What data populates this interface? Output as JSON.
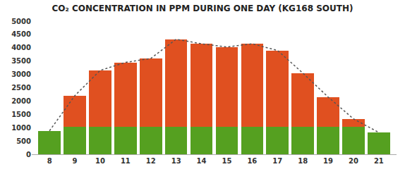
{
  "chart_data": {
    "type": "bar",
    "stacked": true,
    "title": "CO₂ CONCENTRATION IN PPM DURING ONE DAY (KG168 SOUTH)",
    "x": [
      8,
      9,
      10,
      11,
      12,
      13,
      14,
      15,
      16,
      17,
      18,
      19,
      20,
      21
    ],
    "series": [
      {
        "color": "#55A020",
        "values": [
          880,
          1020,
          1020,
          1020,
          1020,
          1020,
          1020,
          1020,
          1020,
          1020,
          1020,
          1020,
          1020,
          820
        ]
      },
      {
        "color": "#E05020",
        "values": [
          0,
          1180,
          2130,
          2430,
          2580,
          3300,
          3130,
          3010,
          3130,
          2880,
          2030,
          1130,
          310,
          0
        ]
      },
      {
        "type": "line",
        "line_style": "dotted",
        "color": "#555555",
        "values": [
          880,
          2200,
          3150,
          3450,
          3600,
          4320,
          4150,
          4030,
          4150,
          3900,
          3050,
          2150,
          1330,
          820
        ]
      }
    ],
    "xlim": [
      7.3,
      21.7
    ],
    "xticks": [
      8,
      9,
      10,
      11,
      12,
      13,
      14,
      15,
      16,
      17,
      18,
      19,
      20,
      21
    ],
    "ylim": [
      0,
      5000
    ],
    "yticks": [
      0,
      500,
      1000,
      1500,
      2000,
      2500,
      3000,
      3500,
      4000,
      4500,
      5000
    ],
    "grid": false
  }
}
